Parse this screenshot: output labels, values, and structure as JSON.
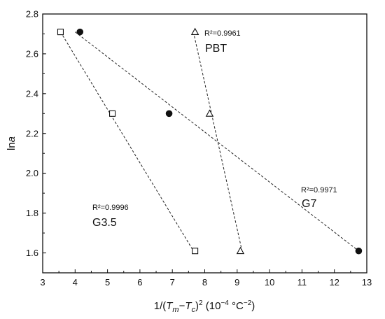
{
  "chart_data": {
    "type": "scatter",
    "xlabel": "1/(T_m−T_c)^2 (10^-4 °C^-2)",
    "ylabel": "lna",
    "xlim": [
      3,
      13
    ],
    "ylim": [
      1.5,
      2.8
    ],
    "x_ticks": [
      3,
      4,
      5,
      6,
      7,
      8,
      9,
      10,
      11,
      12,
      13
    ],
    "y_ticks": [
      1.6,
      1.8,
      2.0,
      2.2,
      2.4,
      2.6,
      2.8
    ],
    "x_tick_labels": [
      "3",
      "4",
      "5",
      "6",
      "7",
      "8",
      "9",
      "10",
      "11",
      "12",
      "13"
    ],
    "y_tick_labels": [
      "1.6",
      "1.8",
      "2.0",
      "2.2",
      "2.4",
      "2.6",
      "2.8"
    ],
    "grid": false,
    "series": [
      {
        "name": "PBT",
        "marker": "triangle-open",
        "r2": "R²=0.9961",
        "points": [
          [
            7.7,
            2.71
          ],
          [
            8.15,
            2.3
          ],
          [
            9.1,
            1.61
          ]
        ],
        "fit": [
          [
            7.65,
            2.71
          ],
          [
            9.15,
            1.61
          ]
        ]
      },
      {
        "name": "G3.5",
        "marker": "square-open",
        "r2": "R²=0.9996",
        "points": [
          [
            3.55,
            2.71
          ],
          [
            5.15,
            2.3
          ],
          [
            7.7,
            1.61
          ]
        ],
        "fit": [
          [
            3.55,
            2.71
          ],
          [
            7.65,
            1.61
          ]
        ]
      },
      {
        "name": "G7",
        "marker": "circle-filled",
        "r2": "R²=0.9971",
        "points": [
          [
            4.15,
            2.71
          ],
          [
            6.9,
            2.3
          ],
          [
            12.75,
            1.61
          ]
        ],
        "fit": [
          [
            4.0,
            2.71
          ],
          [
            12.75,
            1.61
          ]
        ]
      }
    ]
  },
  "annotations": {
    "pbt_r2": "R²=0.9961",
    "pbt_name": "PBT",
    "g35_r2": "R²=0.9996",
    "g35_name": "G3.5",
    "g7_r2": "R²=0.9971",
    "g7_name": "G7"
  }
}
